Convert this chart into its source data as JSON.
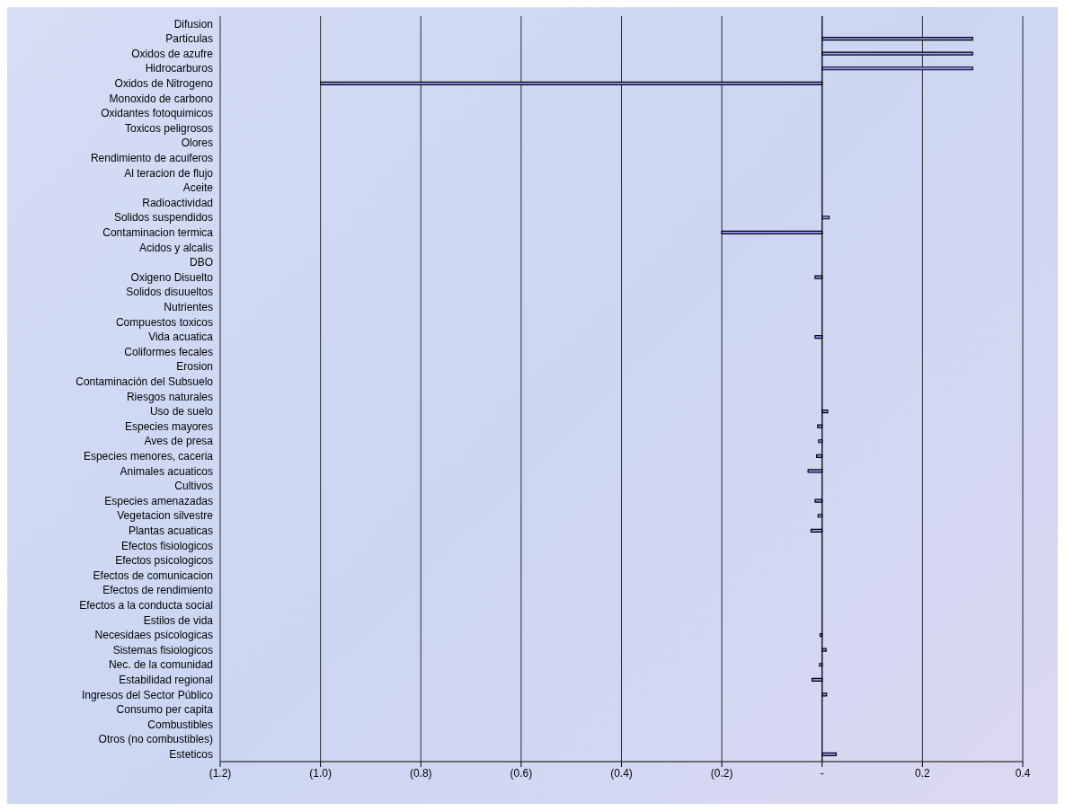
{
  "chart_data": {
    "type": "bar",
    "orientation": "horizontal",
    "categories": [
      "Difusion",
      "Particulas",
      "Oxidos de azufre",
      "Hidrocarburos",
      "Oxidos de Nitrogeno",
      "Monoxido de carbono",
      "Oxidantes fotoquimicos",
      "Toxicos peligrosos",
      "Olores",
      "Rendimiento de acuiferos",
      "Al teracion de flujo",
      "Aceite",
      "Radioactividad",
      "Solidos suspendidos",
      "Contaminacion termica",
      "Acidos y alcalis",
      "DBO",
      "Oxigeno Disuelto",
      "Solidos disuueltos",
      "Nutrientes",
      "Compuestos toxicos",
      "Vida acuatica",
      "Coliformes fecales",
      "Erosion",
      "Contaminación del Subsuelo",
      "Riesgos naturales",
      "Uso de suelo",
      "Especies mayores",
      "Aves de presa",
      "Especies menores, caceria",
      "Animales acuaticos",
      "Cultivos",
      "Especies amenazadas",
      "Vegetacion silvestre",
      "Plantas acuaticas",
      "Efectos fisiologicos",
      "Efectos psicologicos",
      "Efectos de comunicacion",
      "Efectos de rendimiento",
      "Efectos a la conducta social",
      "Estilos de vida",
      "Necesidaes psicologicas",
      "Sistemas fisiologicos",
      "Nec. de la comunidad",
      "Estabilidad regional",
      "Ingresos del Sector Público",
      "Consumo per capita",
      "Combustibles",
      "Otros (no combustibles)",
      "Esteticos"
    ],
    "values": [
      0,
      0.3,
      0.3,
      0.3,
      -1.0,
      0,
      0,
      0,
      0,
      0,
      0,
      0,
      0,
      0.014,
      -0.2,
      0,
      0,
      -0.014,
      0,
      0,
      0,
      -0.014,
      0,
      0,
      0,
      0,
      0.011,
      -0.009,
      -0.007,
      -0.011,
      -0.028,
      0,
      -0.014,
      -0.008,
      -0.022,
      0,
      0,
      0,
      0,
      0,
      0,
      -0.004,
      0.008,
      -0.005,
      -0.02,
      0.009,
      0,
      0,
      0,
      0.028
    ],
    "color": "#9999ff",
    "xlim": [
      -1.2,
      0.4
    ],
    "xticks": [
      {
        "value": -1.2,
        "label": "(1.2)"
      },
      {
        "value": -1.0,
        "label": "(1.0)"
      },
      {
        "value": -0.8,
        "label": "(0.8)"
      },
      {
        "value": -0.6,
        "label": "(0.6)"
      },
      {
        "value": -0.4,
        "label": "(0.4)"
      },
      {
        "value": -0.2,
        "label": "(0.2)"
      },
      {
        "value": 0,
        "label": "-"
      },
      {
        "value": 0.2,
        "label": "0.2"
      },
      {
        "value": 0.4,
        "label": "0.4"
      }
    ],
    "grid": "x",
    "legend": false
  }
}
